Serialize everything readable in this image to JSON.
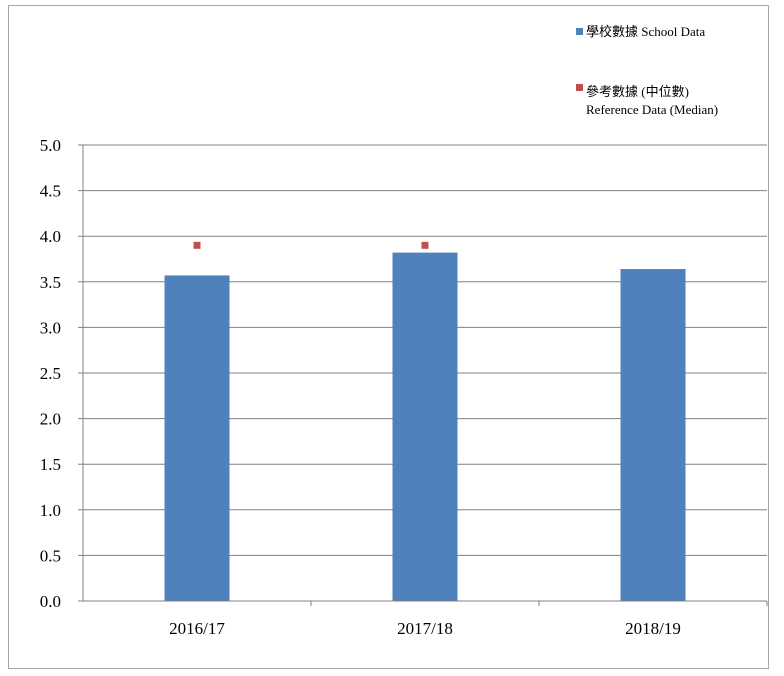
{
  "chart_data": {
    "type": "bar",
    "categories": [
      "2016/17",
      "2017/18",
      "2018/19"
    ],
    "series": [
      {
        "name": "學校數據 School Data",
        "type": "bar",
        "color": "#4f81bd",
        "values": [
          3.57,
          3.82,
          3.64
        ]
      },
      {
        "name": "參考數據 (中位數) Reference Data (Median)",
        "type": "marker",
        "color": "#c0504d",
        "values": [
          3.9,
          3.9,
          null
        ]
      }
    ],
    "ylim": [
      0,
      5
    ],
    "yticks": [
      "0.0",
      "0.5",
      "1.0",
      "1.5",
      "2.0",
      "2.5",
      "3.0",
      "3.5",
      "4.0",
      "4.5",
      "5.0"
    ],
    "grid": true,
    "legend_position": "top-right",
    "legend": {
      "school": "學校數據 School Data",
      "reference_line1": "參考數據 (中位數)",
      "reference_line2": "Reference Data (Median)"
    }
  }
}
